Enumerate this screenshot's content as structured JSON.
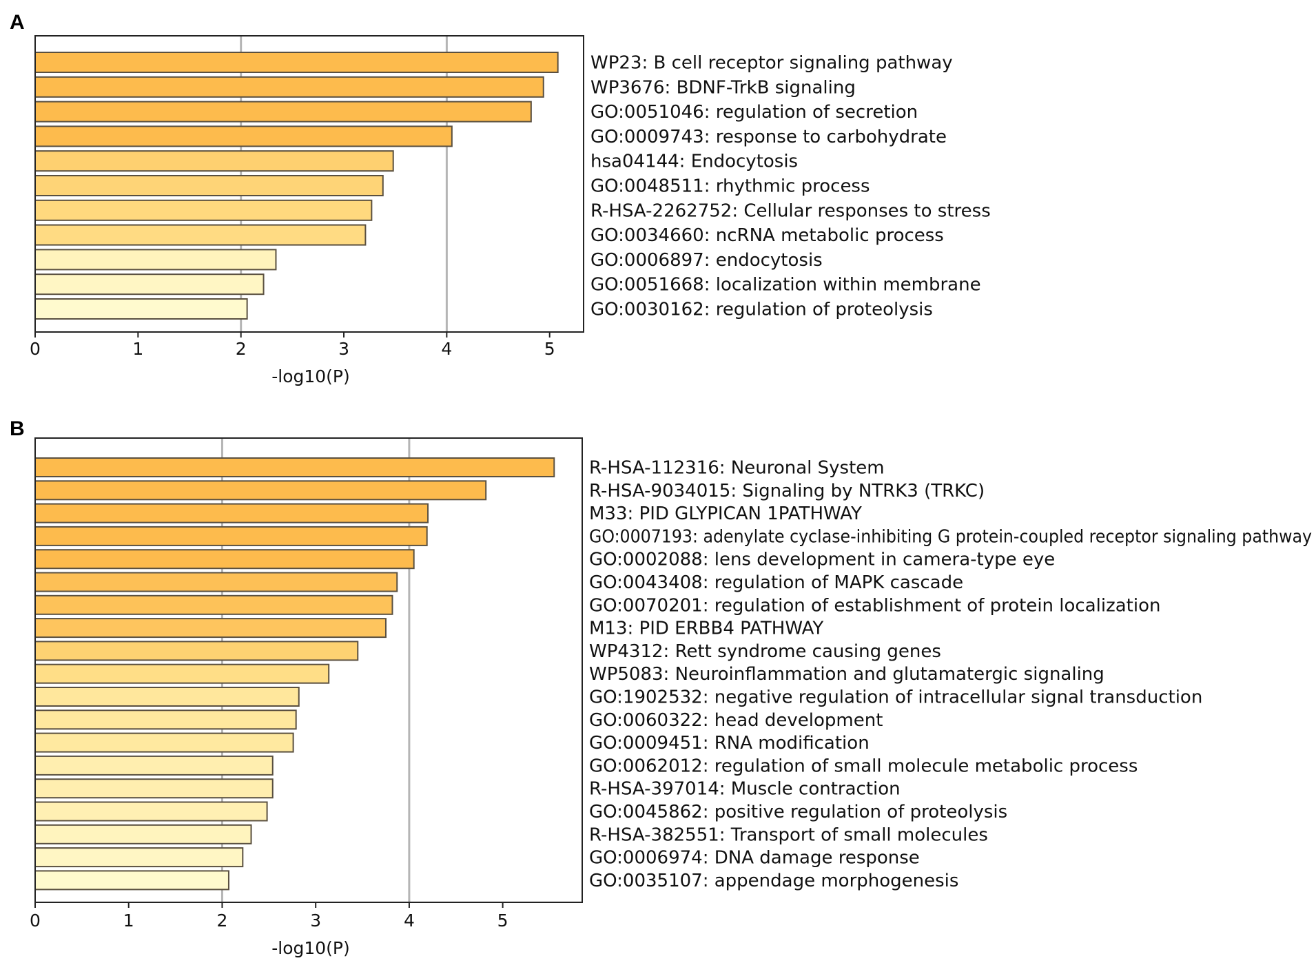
{
  "figure": "Enrichment bar charts",
  "colors": {
    "gridline": "#b5b5b5",
    "bar_stroke": "#5a5040",
    "frame": "#222222",
    "scale_low": "#fffcd2",
    "scale_mid": "#ffe08a",
    "scale_high": "#fdbb4d"
  },
  "chart_data": [
    {
      "panel": "A",
      "type": "bar",
      "orientation": "horizontal",
      "xlabel": "-log10(P)",
      "xticks": [
        0,
        1,
        2,
        3,
        4,
        5
      ],
      "xlim": [
        0,
        5.33
      ],
      "gridlines_at": [
        2,
        4
      ],
      "legend": "none",
      "categories": [
        "WP23: B cell receptor signaling pathway",
        "WP3676: BDNF-TrkB signaling",
        "GO:0051046: regulation of secretion",
        "GO:0009743: response to carbohydrate",
        "hsa04144: Endocytosis",
        "GO:0048511: rhythmic process",
        "R-HSA-2262752: Cellular responses to stress",
        "GO:0034660: ncRNA metabolic process",
        "GO:0006897: endocytosis",
        "GO:0051668: localization within membrane",
        "GO:0030162: regulation of proteolysis"
      ],
      "values": [
        5.08,
        4.94,
        4.82,
        4.05,
        3.48,
        3.38,
        3.27,
        3.21,
        2.34,
        2.22,
        2.06
      ]
    },
    {
      "panel": "B",
      "type": "bar",
      "orientation": "horizontal",
      "xlabel": "-log10(P)",
      "xticks": [
        0,
        1,
        2,
        3,
        4,
        5
      ],
      "xlim": [
        0,
        5.85
      ],
      "gridlines_at": [
        2,
        4
      ],
      "legend": "none",
      "categories": [
        "R-HSA-112316: Neuronal System",
        "R-HSA-9034015: Signaling by NTRK3 (TRKC)",
        "M33: PID GLYPICAN 1PATHWAY",
        "GO:0007193: adenylate cyclase-inhibiting G protein-coupled receptor signaling pathway",
        "GO:0002088: lens development in camera-type eye",
        "GO:0043408: regulation of MAPK cascade",
        "GO:0070201: regulation of establishment of protein localization",
        "M13: PID ERBB4 PATHWAY",
        "WP4312: Rett syndrome causing genes",
        "WP5083: Neuroinflammation and glutamatergic signaling",
        "GO:1902532: negative regulation of intracellular signal transduction",
        "GO:0060322: head development",
        "GO:0009451: RNA modification",
        "GO:0062012: regulation of small molecule metabolic process",
        "R-HSA-397014: Muscle contraction",
        "GO:0045862: positive regulation of proteolysis",
        "R-HSA-382551: Transport of small molecules",
        "GO:0006974: DNA damage response",
        "GO:0035107: appendage morphogenesis"
      ],
      "values": [
        5.55,
        4.82,
        4.2,
        4.19,
        4.05,
        3.87,
        3.82,
        3.75,
        3.45,
        3.14,
        2.82,
        2.79,
        2.76,
        2.54,
        2.54,
        2.48,
        2.31,
        2.22,
        2.07
      ]
    }
  ]
}
